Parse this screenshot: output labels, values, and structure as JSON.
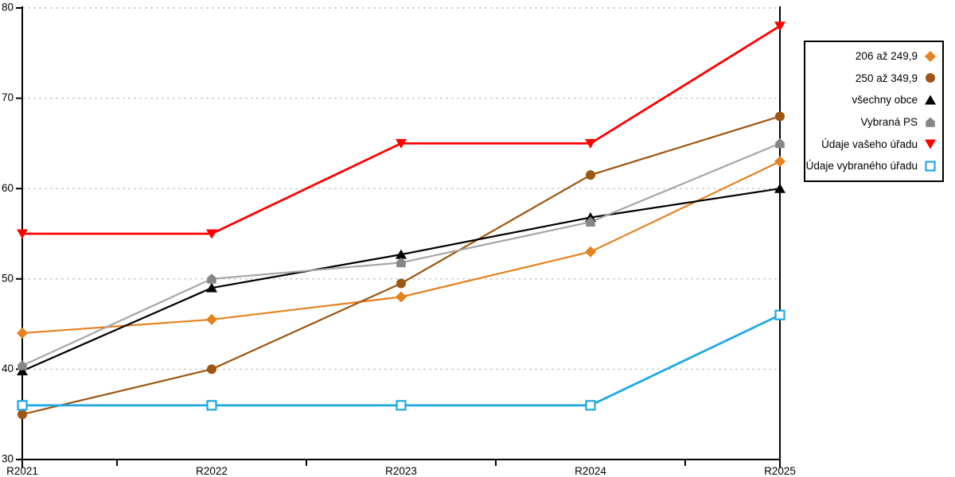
{
  "chart_data": {
    "type": "line",
    "title": "",
    "xlabel": "",
    "ylabel": "",
    "categories": [
      "R2021",
      "R2022",
      "R2023",
      "R2024",
      "R2025"
    ],
    "ylim": [
      30,
      80
    ],
    "yticks": [
      30,
      40,
      50,
      60,
      70,
      80
    ],
    "grid": "horizontal-dashed",
    "legend_position": "right",
    "series": [
      {
        "name": "206 až 249,9",
        "marker": "diamond",
        "color": "#E5811F",
        "marker_color": "#E5811F",
        "line_width": 2.2,
        "values": [
          44,
          45.5,
          48,
          53,
          63
        ]
      },
      {
        "name": "250 až 349,9",
        "marker": "circle",
        "color": "#9E5611",
        "marker_color": "#9E5611",
        "line_width": 2.2,
        "values": [
          35,
          40,
          49.5,
          61.5,
          68
        ]
      },
      {
        "name": "všechny obce",
        "marker": "triangle-up",
        "color": "#000000",
        "marker_color": "#000000",
        "line_width": 2.2,
        "values": [
          39.8,
          49,
          52.7,
          56.8,
          60
        ]
      },
      {
        "name": "Vybraná PS",
        "marker": "pentagon",
        "color": "#A6A6A6",
        "marker_color": "#878787",
        "line_width": 2.2,
        "values": [
          40.4,
          50,
          51.8,
          56.3,
          65
        ]
      },
      {
        "name": "Údaje vašeho úřadu",
        "marker": "triangle-down",
        "color": "#FF0000",
        "marker_color": "#FF0000",
        "line_width": 2.8,
        "values": [
          55,
          55,
          65,
          65,
          78
        ]
      },
      {
        "name": "Údaje vybraného úřadu",
        "marker": "square-open",
        "color": "#1FA9E2",
        "marker_color": "#1FA9E2",
        "line_width": 2.8,
        "values": [
          36,
          36,
          36,
          36,
          46
        ]
      }
    ],
    "colors": {
      "axis": "#000000",
      "gridline": "#C9C9C9",
      "background": "#FFFFFF",
      "tick_label": "#000000",
      "legend_border": "#000000"
    }
  }
}
